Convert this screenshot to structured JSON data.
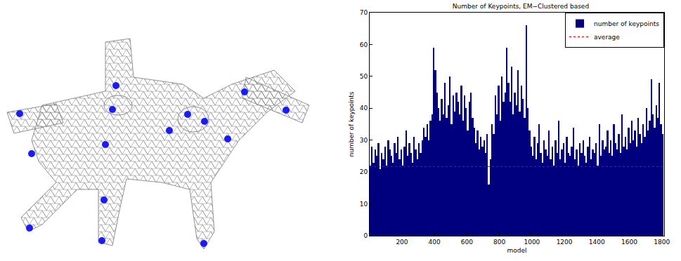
{
  "chart_data": {
    "type": "bar",
    "title": "Number of Keypoints, EM−Clustered based",
    "x_label": "model",
    "y_label": "number of keypoints",
    "x": [
      5,
      15,
      25,
      35,
      45,
      55,
      65,
      75,
      85,
      95,
      105,
      115,
      125,
      135,
      145,
      155,
      165,
      175,
      185,
      195,
      205,
      215,
      225,
      235,
      245,
      255,
      265,
      275,
      285,
      295,
      305,
      315,
      325,
      335,
      345,
      355,
      365,
      375,
      385,
      395,
      405,
      415,
      425,
      435,
      445,
      455,
      465,
      475,
      485,
      495,
      505,
      515,
      525,
      535,
      545,
      555,
      565,
      575,
      585,
      595,
      605,
      615,
      625,
      635,
      645,
      655,
      665,
      675,
      685,
      695,
      705,
      715,
      725,
      735,
      745,
      755,
      765,
      775,
      785,
      795,
      805,
      815,
      825,
      835,
      845,
      855,
      865,
      875,
      885,
      895,
      905,
      915,
      925,
      935,
      945,
      955,
      965,
      975,
      985,
      995,
      1005,
      1015,
      1025,
      1035,
      1045,
      1055,
      1065,
      1075,
      1085,
      1095,
      1105,
      1115,
      1125,
      1135,
      1145,
      1155,
      1165,
      1175,
      1185,
      1195,
      1205,
      1215,
      1225,
      1235,
      1245,
      1255,
      1265,
      1275,
      1285,
      1295,
      1305,
      1315,
      1325,
      1335,
      1345,
      1355,
      1365,
      1375,
      1385,
      1395,
      1405,
      1415,
      1425,
      1435,
      1445,
      1455,
      1465,
      1475,
      1485,
      1495,
      1505,
      1515,
      1525,
      1535,
      1545,
      1555,
      1565,
      1575,
      1585,
      1595,
      1605,
      1615,
      1625,
      1635,
      1645,
      1655,
      1665,
      1675,
      1685,
      1695,
      1705,
      1715,
      1725,
      1735,
      1745,
      1755,
      1765,
      1775,
      1785,
      1795,
      1805
    ],
    "series": [
      {
        "name": "number of keypoints",
        "type": "bar",
        "color": "#00007f",
        "values": [
          22,
          28,
          23,
          27,
          25,
          29,
          21,
          26,
          24,
          28,
          22,
          30,
          27,
          25,
          23,
          29,
          26,
          31,
          24,
          27,
          22,
          28,
          33,
          25,
          29,
          26,
          23,
          31,
          27,
          24,
          29,
          26,
          30,
          34,
          31,
          35,
          30,
          36,
          38,
          59,
          52,
          45,
          40,
          36,
          43,
          38,
          48,
          37,
          41,
          50,
          35,
          44,
          39,
          45,
          42,
          38,
          47,
          36,
          44,
          40,
          33,
          42,
          45,
          37,
          34,
          29,
          33,
          27,
          31,
          28,
          30,
          26,
          32,
          16,
          24,
          35,
          32,
          44,
          38,
          47,
          36,
          50,
          42,
          45,
          59,
          48,
          42,
          53,
          38,
          45,
          41,
          52,
          39,
          47,
          43,
          37,
          66,
          40,
          33,
          28,
          25,
          31,
          24,
          29,
          35,
          26,
          23,
          30,
          27,
          25,
          33,
          24,
          28,
          22,
          30,
          26,
          36,
          24,
          27,
          29,
          23,
          31,
          26,
          25,
          28,
          34,
          24,
          27,
          22,
          29,
          26,
          30,
          25,
          23,
          28,
          31,
          24,
          27,
          26,
          29,
          22,
          35,
          25,
          30,
          27,
          28,
          33,
          26,
          30,
          25,
          35,
          29,
          27,
          32,
          26,
          38,
          28,
          31,
          27,
          34,
          29,
          36,
          30,
          33,
          28,
          37,
          32,
          29,
          35,
          31,
          40,
          33,
          36,
          49,
          38,
          34,
          41,
          37,
          48,
          35,
          32
        ]
      },
      {
        "name": "average",
        "type": "line",
        "line_style": "dotted",
        "color": "#cc0000",
        "x": [
          1,
          1814
        ],
        "values": [
          21.7,
          21.7
        ]
      }
    ],
    "xlim": [
      1,
      1814
    ],
    "xticks": [
      200,
      400,
      600,
      800,
      1000,
      1200,
      1400,
      1600,
      1800
    ],
    "ylim": [
      0,
      70
    ],
    "yticks": [
      0,
      10,
      20,
      30,
      40,
      50,
      60,
      70
    ],
    "grid": false,
    "legend": "top right"
  }
}
